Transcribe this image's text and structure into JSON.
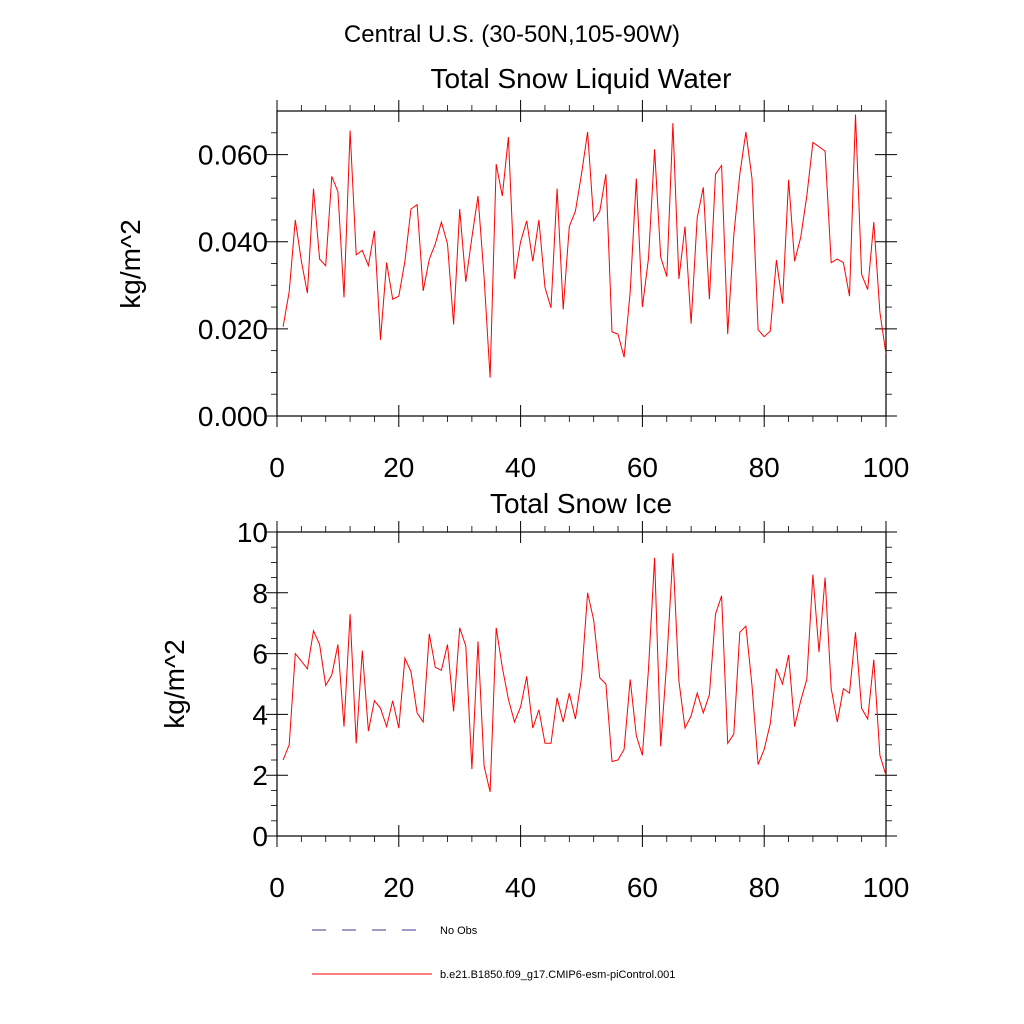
{
  "figure": {
    "title": "Central U.S. (30-50N,105-90W)"
  },
  "chart_data": [
    {
      "type": "line",
      "title": "Total Snow Liquid Water",
      "xlabel": "",
      "ylabel": "kg/m^2",
      "xlim": [
        0,
        100
      ],
      "ylim": [
        0,
        0.07
      ],
      "xticks": [
        0,
        20,
        40,
        60,
        80,
        100
      ],
      "xtick_labels": [
        "0",
        "20",
        "40",
        "60",
        "80",
        "100"
      ],
      "yticks": [
        0,
        0.02,
        0.04,
        0.06
      ],
      "ytick_labels": [
        "0.000",
        "0.020",
        "0.040",
        "0.060"
      ],
      "grid": false,
      "series": [
        {
          "name": "b.e21.B1850.f09_g17.CMIP6-esm-piControl.001",
          "color": "#ff0000",
          "x": [
            1,
            2,
            3,
            4,
            5,
            6,
            7,
            8,
            9,
            10,
            11,
            12,
            13,
            14,
            15,
            16,
            17,
            18,
            19,
            20,
            21,
            22,
            23,
            24,
            25,
            26,
            27,
            28,
            29,
            30,
            31,
            32,
            33,
            34,
            35,
            36,
            37,
            38,
            39,
            40,
            41,
            42,
            43,
            44,
            45,
            46,
            47,
            48,
            49,
            50,
            51,
            52,
            53,
            54,
            55,
            56,
            57,
            58,
            59,
            60,
            61,
            62,
            63,
            64,
            65,
            66,
            67,
            68,
            69,
            70,
            71,
            72,
            73,
            74,
            75,
            76,
            77,
            78,
            79,
            80,
            81,
            82,
            83,
            84,
            85,
            86,
            87,
            88,
            89,
            90,
            91,
            92,
            93,
            94,
            95,
            96,
            97,
            98,
            99,
            100
          ],
          "values": [
            0.0205,
            0.0285,
            0.045,
            0.0355,
            0.0282,
            0.0522,
            0.036,
            0.0345,
            0.055,
            0.0515,
            0.0272,
            0.0655,
            0.037,
            0.038,
            0.0345,
            0.0425,
            0.0175,
            0.0352,
            0.0268,
            0.0275,
            0.0355,
            0.0475,
            0.0485,
            0.0287,
            0.036,
            0.0395,
            0.0445,
            0.0395,
            0.021,
            0.0475,
            0.0308,
            0.041,
            0.0505,
            0.0318,
            0.0088,
            0.0578,
            0.0505,
            0.064,
            0.0315,
            0.04,
            0.0448,
            0.0355,
            0.045,
            0.0295,
            0.0248,
            0.0522,
            0.0245,
            0.0435,
            0.047,
            0.0555,
            0.0652,
            0.0448,
            0.047,
            0.0555,
            0.0193,
            0.0188,
            0.0135,
            0.0285,
            0.0545,
            0.025,
            0.0362,
            0.0612,
            0.0365,
            0.032,
            0.0672,
            0.0315,
            0.0435,
            0.0212,
            0.0455,
            0.0525,
            0.0268,
            0.0555,
            0.0575,
            0.0188,
            0.0415,
            0.0555,
            0.0652,
            0.0545,
            0.0198,
            0.0182,
            0.0195,
            0.0358,
            0.0258,
            0.0542,
            0.0355,
            0.041,
            0.0505,
            0.0628,
            0.0618,
            0.0608,
            0.0352,
            0.036,
            0.0352,
            0.0275,
            0.0692,
            0.0325,
            0.029,
            0.0445,
            0.0238,
            0.0142
          ]
        }
      ]
    },
    {
      "type": "line",
      "title": "Total Snow Ice",
      "xlabel": "",
      "ylabel": "kg/m^2",
      "xlim": [
        0,
        100
      ],
      "ylim": [
        0,
        10
      ],
      "xticks": [
        0,
        20,
        40,
        60,
        80,
        100
      ],
      "xtick_labels": [
        "0",
        "20",
        "40",
        "60",
        "80",
        "100"
      ],
      "yticks": [
        0,
        2,
        4,
        6,
        8,
        10
      ],
      "ytick_labels": [
        "0",
        "2",
        "4",
        "6",
        "8",
        "10"
      ],
      "grid": false,
      "series": [
        {
          "name": "b.e21.B1850.f09_g17.CMIP6-esm-piControl.001",
          "color": "#ff0000",
          "x": [
            1,
            2,
            3,
            4,
            5,
            6,
            7,
            8,
            9,
            10,
            11,
            12,
            13,
            14,
            15,
            16,
            17,
            18,
            19,
            20,
            21,
            22,
            23,
            24,
            25,
            26,
            27,
            28,
            29,
            30,
            31,
            32,
            33,
            34,
            35,
            36,
            37,
            38,
            39,
            40,
            41,
            42,
            43,
            44,
            45,
            46,
            47,
            48,
            49,
            50,
            51,
            52,
            53,
            54,
            55,
            56,
            57,
            58,
            59,
            60,
            61,
            62,
            63,
            64,
            65,
            66,
            67,
            68,
            69,
            70,
            71,
            72,
            73,
            74,
            75,
            76,
            77,
            78,
            79,
            80,
            81,
            82,
            83,
            84,
            85,
            86,
            87,
            88,
            89,
            90,
            91,
            92,
            93,
            94,
            95,
            96,
            97,
            98,
            99,
            100
          ],
          "values": [
            2.5,
            3.0,
            6.0,
            5.75,
            5.5,
            6.75,
            6.3,
            4.95,
            5.3,
            6.3,
            3.6,
            7.3,
            3.05,
            6.1,
            3.45,
            4.45,
            4.2,
            3.6,
            4.45,
            3.55,
            5.85,
            5.4,
            4.05,
            3.75,
            6.65,
            5.55,
            5.45,
            6.3,
            4.1,
            6.85,
            6.25,
            2.2,
            6.4,
            2.3,
            1.45,
            6.85,
            5.55,
            4.5,
            3.75,
            4.25,
            5.25,
            3.55,
            4.15,
            3.05,
            3.05,
            4.55,
            3.75,
            4.7,
            3.85,
            5.2,
            8.0,
            7.1,
            5.2,
            5.0,
            2.45,
            2.5,
            2.85,
            5.15,
            3.3,
            2.65,
            5.5,
            9.15,
            2.95,
            5.75,
            9.3,
            5.1,
            3.55,
            3.95,
            4.7,
            4.05,
            4.65,
            7.3,
            7.9,
            3.05,
            3.35,
            6.7,
            6.9,
            4.95,
            2.35,
            2.85,
            3.7,
            5.5,
            5.0,
            5.95,
            3.6,
            4.45,
            5.15,
            8.6,
            6.05,
            8.5,
            4.85,
            3.75,
            4.85,
            4.7,
            6.7,
            4.2,
            3.85,
            5.8,
            2.65,
            2.0
          ]
        }
      ]
    }
  ],
  "legend": {
    "items": [
      {
        "label": "No Obs",
        "style": "dashed",
        "color": "#3a3a8c"
      },
      {
        "label": "b.e21.B1850.f09_g17.CMIP6-esm-piControl.001",
        "style": "solid",
        "color": "#ff0000"
      }
    ]
  }
}
